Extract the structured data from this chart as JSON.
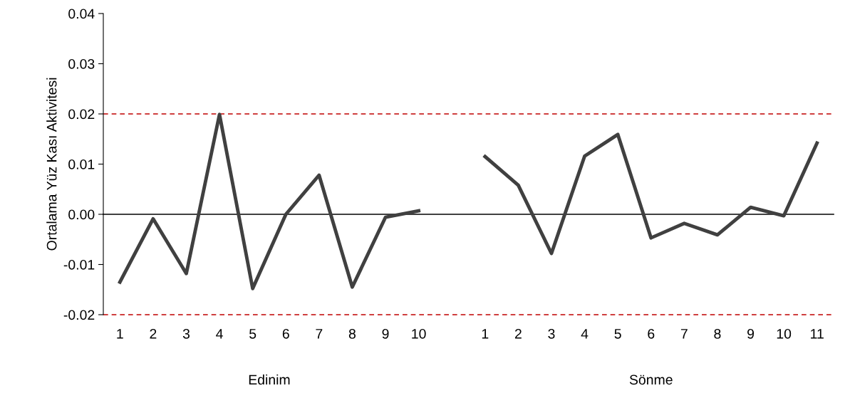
{
  "chart_data": {
    "type": "line",
    "ylabel": "Ortalama Yüz Kası Aktivitesi",
    "categories": [
      "1",
      "2",
      "3",
      "4",
      "5",
      "6",
      "7",
      "8",
      "9",
      "10",
      null,
      "1",
      "2",
      "3",
      "4",
      "5",
      "6",
      "7",
      "8",
      "9",
      "10",
      "11"
    ],
    "series": [
      {
        "color": "#404040",
        "values": [
          -0.0135,
          -0.0009,
          -0.0118,
          0.0199,
          -0.0148,
          0.0,
          0.0078,
          -0.0145,
          -0.0006,
          0.0007,
          null,
          0.0115,
          0.0058,
          -0.0078,
          0.0116,
          0.0159,
          -0.0047,
          -0.0018,
          -0.0041,
          0.0014,
          -0.0003,
          0.0142
        ]
      }
    ],
    "ylim": [
      -0.02,
      0.04
    ],
    "yticks": [
      {
        "value": -0.02,
        "label": "-0.02"
      },
      {
        "value": -0.01,
        "label": "-0.01"
      },
      {
        "value": 0,
        "label": "0.00"
      },
      {
        "value": 0.01,
        "label": "0.01"
      },
      {
        "value": 0.02,
        "label": "0.02"
      },
      {
        "value": 0.03,
        "label": "0.03"
      },
      {
        "value": 0.04,
        "label": "0.04"
      }
    ],
    "ref_lines": [
      {
        "axis": "y",
        "value": 0.02,
        "color": "#c00000",
        "line_style": "dashed"
      },
      {
        "axis": "y",
        "value": -0.02,
        "color": "#c00000",
        "line_style": "dashed"
      },
      {
        "axis": "y",
        "value": 0,
        "color": "#000000",
        "line_style": "solid"
      }
    ],
    "annotations": [
      "Edinim",
      "Sönme"
    ],
    "grid": false,
    "legend": false,
    "marker": "none",
    "line_style": "solid"
  }
}
